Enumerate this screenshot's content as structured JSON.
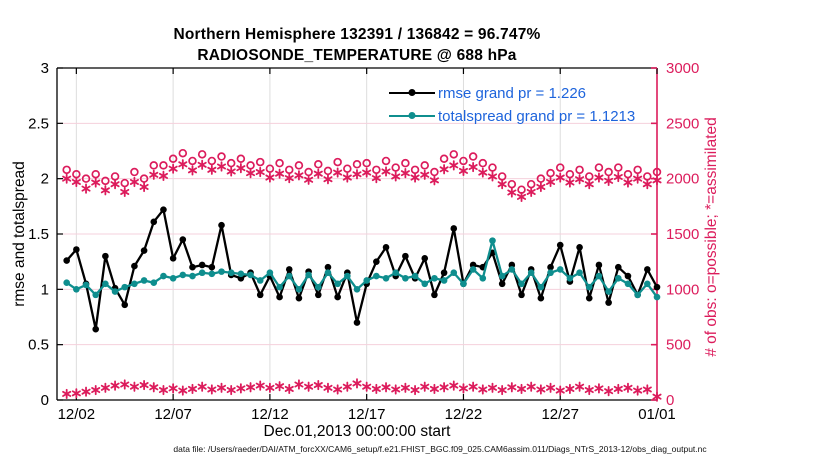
{
  "header": {
    "title_line1": "Northern Hemisphere 132391 / 136842 = 96.747%",
    "title_line2": "RADIOSONDE_TEMPERATURE @ 688 hPa"
  },
  "legend": {
    "text_color": "#1E64DC",
    "entries": [
      {
        "label": "rmse grand pr = 1.226",
        "color": "#000000"
      },
      {
        "label": "totalspread grand pr = 1.1213",
        "color": "#0F8E8E"
      }
    ]
  },
  "footer": {
    "data_file_note": "data file: /Users/raeder/DAI/ATM_forcXX/CAM6_setup/f.e21.FHIST_BGC.f09_025.CAM6assim.011/Diags_NTrS_2013-12/obs_diag_output.nc"
  },
  "chart_data": {
    "type": "line",
    "title": "Northern Hemisphere 132391 / 136842 = 96.747%",
    "subtitle": "RADIOSONDE_TEMPERATURE @ 688 hPa",
    "xlabel": "Dec.01,2013 00:00:00 start",
    "ylabel_left": "rmse and totalspread",
    "ylabel_right": "# of obs: o=possible; *=assimilated",
    "grid": {
      "vertical_color": "#DDDDDD",
      "horizontal_color": "#F5D0DC",
      "on": true
    },
    "axis_colors": {
      "left": "#000000",
      "right": "#DC1C5C"
    },
    "x_range_days": [
      0,
      31
    ],
    "x_ticks": {
      "positions_days": [
        1,
        6,
        11,
        16,
        21,
        26,
        31
      ],
      "labels": [
        "12/02",
        "12/07",
        "12/12",
        "12/17",
        "12/22",
        "12/27",
        "01/01"
      ]
    },
    "y_left": {
      "range": [
        0,
        3
      ],
      "ticks": [
        0,
        0.5,
        1,
        1.5,
        2,
        2.5,
        3
      ],
      "labels": [
        "0",
        "0.5",
        "1",
        "1.5",
        "2",
        "2.5",
        "3"
      ]
    },
    "y_right": {
      "range": [
        0,
        3000
      ],
      "ticks": [
        0,
        500,
        1000,
        1500,
        2000,
        2500,
        3000
      ],
      "labels": [
        "0",
        "500",
        "1000",
        "1500",
        "2000",
        "2500",
        "3000"
      ]
    },
    "x_start_day": 0.5,
    "x_step_days": 0.5,
    "n_points": 62,
    "legend_position": "inside-top-center-right",
    "series": [
      {
        "name": "possible",
        "legend_hint": "o=possible",
        "axis": "right",
        "color": "#DC1C5C",
        "marker": "open-circle",
        "line": false,
        "values": [
          2080,
          2040,
          2000,
          2040,
          1980,
          2020,
          1960,
          2060,
          2000,
          2120,
          2120,
          2180,
          2230,
          2160,
          2220,
          2160,
          2200,
          2140,
          2180,
          2120,
          2150,
          2090,
          2140,
          2080,
          2120,
          2060,
          2130,
          2070,
          2150,
          2090,
          2130,
          2140,
          2080,
          2160,
          2100,
          2140,
          2080,
          2120,
          2060,
          2180,
          2220,
          2160,
          2200,
          2140,
          2100,
          2020,
          1950,
          1900,
          1950,
          2000,
          2050,
          2100,
          2040,
          2080,
          2020,
          2100,
          2060,
          2100,
          2040,
          2080,
          2020,
          2060
        ]
      },
      {
        "name": "assimilated",
        "legend_hint": "*=assimilated",
        "axis": "right",
        "color": "#DC1C5C",
        "marker": "asterisk",
        "line": false,
        "values": [
          2000,
          1970,
          1910,
          1965,
          1895,
          1950,
          1880,
          1970,
          1925,
          2035,
          2025,
          2090,
          2130,
          2075,
          2125,
          2080,
          2110,
          2065,
          2095,
          2050,
          2060,
          2010,
          2045,
          2005,
          2030,
          1990,
          2045,
          1995,
          2055,
          2010,
          2040,
          2055,
          2005,
          2065,
          2020,
          2050,
          2010,
          2035,
          1985,
          2085,
          2120,
          2070,
          2105,
          2055,
          2020,
          1950,
          1875,
          1835,
          1880,
          1925,
          1970,
          2010,
          1965,
          1995,
          1950,
          2010,
          1980,
          2015,
          1965,
          2000,
          1950,
          1985
        ]
      },
      {
        "name": "low_count_band",
        "legend_hint": "unlabeled low series near 0",
        "axis": "right",
        "color": "#DC1C5C",
        "marker": "asterisk",
        "line": false,
        "values": [
          55,
          60,
          75,
          90,
          110,
          130,
          140,
          120,
          135,
          115,
          90,
          105,
          85,
          100,
          120,
          95,
          110,
          90,
          105,
          115,
          130,
          110,
          125,
          100,
          140,
          120,
          135,
          110,
          95,
          120,
          150,
          120,
          100,
          115,
          95,
          110,
          90,
          120,
          100,
          115,
          130,
          105,
          120,
          95,
          110,
          90,
          115,
          100,
          120,
          95,
          110,
          85,
          100,
          120,
          90,
          105,
          80,
          100,
          110,
          85,
          95,
          30
        ]
      },
      {
        "name": "rmse",
        "grand_value": "1.226",
        "axis": "left",
        "color": "#000000",
        "marker": "circle",
        "line": true,
        "values": [
          1.26,
          1.36,
          1.05,
          0.64,
          1.3,
          1.01,
          0.86,
          1.21,
          1.35,
          1.61,
          1.72,
          1.28,
          1.45,
          1.2,
          1.22,
          1.2,
          1.58,
          1.13,
          1.1,
          1.15,
          0.95,
          1.12,
          0.93,
          1.18,
          0.92,
          1.16,
          0.95,
          1.2,
          0.93,
          1.15,
          0.7,
          1.05,
          1.25,
          1.38,
          1.12,
          1.3,
          1.1,
          1.28,
          0.95,
          1.15,
          1.55,
          1.05,
          1.22,
          1.2,
          1.33,
          1.05,
          1.22,
          0.95,
          1.18,
          0.92,
          1.2,
          1.4,
          1.07,
          1.38,
          0.92,
          1.22,
          0.88,
          1.2,
          1.12,
          0.95,
          1.18,
          1.02
        ]
      },
      {
        "name": "totalspread",
        "grand_value": "1.1213",
        "axis": "left",
        "color": "#0F8E8E",
        "marker": "circle",
        "line": true,
        "values": [
          1.06,
          1.0,
          1.04,
          0.95,
          1.05,
          0.98,
          1.02,
          1.05,
          1.08,
          1.06,
          1.12,
          1.1,
          1.13,
          1.12,
          1.15,
          1.14,
          1.16,
          1.15,
          1.14,
          1.13,
          1.08,
          1.15,
          1.02,
          1.12,
          1.0,
          1.13,
          1.02,
          1.15,
          1.05,
          1.12,
          1.0,
          1.08,
          1.12,
          1.1,
          1.15,
          1.1,
          1.12,
          1.05,
          1.1,
          1.08,
          1.15,
          1.05,
          1.18,
          1.1,
          1.44,
          1.12,
          1.18,
          1.05,
          1.15,
          1.02,
          1.15,
          1.18,
          1.1,
          1.15,
          1.02,
          1.12,
          0.98,
          1.1,
          1.05,
          0.95,
          1.05,
          0.93
        ]
      }
    ]
  }
}
